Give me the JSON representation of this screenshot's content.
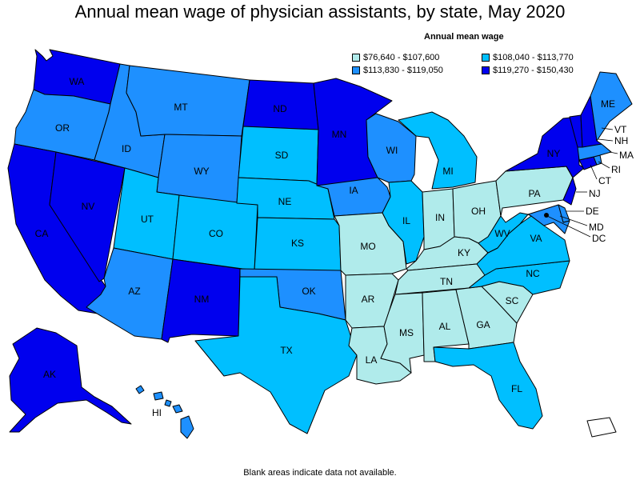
{
  "title": "Annual mean wage of physician assistants, by state, May 2020",
  "legend": {
    "title": "Annual mean wage",
    "items": [
      {
        "label": "$76,640 - $107,600",
        "color": "#b0ebeb"
      },
      {
        "label": "$108,040 - $113,770",
        "color": "#00bfff"
      },
      {
        "label": "$113,830 - $119,050",
        "color": "#1e90ff"
      },
      {
        "label": "$119,270 - $150,430",
        "color": "#0000ee"
      }
    ]
  },
  "footnote": "Blank areas indicate data not available.",
  "colors": {
    "none": "#ffffff",
    "outline": "#000000"
  },
  "states": {
    "WA": {
      "label": "WA",
      "bin": 3
    },
    "OR": {
      "label": "OR",
      "bin": 2
    },
    "CA": {
      "label": "CA",
      "bin": 3
    },
    "NV": {
      "label": "NV",
      "bin": 3
    },
    "ID": {
      "label": "ID",
      "bin": 2
    },
    "MT": {
      "label": "MT",
      "bin": 2
    },
    "WY": {
      "label": "WY",
      "bin": 2
    },
    "UT": {
      "label": "UT",
      "bin": 1
    },
    "AZ": {
      "label": "AZ",
      "bin": 2
    },
    "CO": {
      "label": "CO",
      "bin": 1
    },
    "NM": {
      "label": "NM",
      "bin": 3
    },
    "ND": {
      "label": "ND",
      "bin": 3
    },
    "SD": {
      "label": "SD",
      "bin": 1
    },
    "NE": {
      "label": "NE",
      "bin": 1
    },
    "KS": {
      "label": "KS",
      "bin": 1
    },
    "OK": {
      "label": "OK",
      "bin": 2
    },
    "TX": {
      "label": "TX",
      "bin": 1
    },
    "MN": {
      "label": "MN",
      "bin": 3
    },
    "IA": {
      "label": "IA",
      "bin": 2
    },
    "MO": {
      "label": "MO",
      "bin": 0
    },
    "AR": {
      "label": "AR",
      "bin": 0
    },
    "LA": {
      "label": "LA",
      "bin": 0
    },
    "WI": {
      "label": "WI",
      "bin": 2
    },
    "IL": {
      "label": "IL",
      "bin": 1
    },
    "MI": {
      "label": "MI",
      "bin": 1
    },
    "IN": {
      "label": "IN",
      "bin": 0
    },
    "OH": {
      "label": "OH",
      "bin": 0
    },
    "KY": {
      "label": "KY",
      "bin": 0
    },
    "TN": {
      "label": "TN",
      "bin": 0
    },
    "MS": {
      "label": "MS",
      "bin": 0
    },
    "AL": {
      "label": "AL",
      "bin": 0
    },
    "GA": {
      "label": "GA",
      "bin": 0
    },
    "FL": {
      "label": "FL",
      "bin": 1
    },
    "SC": {
      "label": "SC",
      "bin": 0
    },
    "NC": {
      "label": "NC",
      "bin": 1
    },
    "VA": {
      "label": "VA",
      "bin": 1
    },
    "WV": {
      "label": "WV",
      "bin": 1
    },
    "PA": {
      "label": "PA",
      "bin": 0
    },
    "NY": {
      "label": "NY",
      "bin": 3
    },
    "NJ": {
      "label": "NJ",
      "bin": 3
    },
    "DE": {
      "label": "DE",
      "bin": 2
    },
    "MD": {
      "label": "MD",
      "bin": 2
    },
    "DC": {
      "label": "DC",
      "bin": 3
    },
    "CT": {
      "label": "CT",
      "bin": 3
    },
    "RI": {
      "label": "RI",
      "bin": 2
    },
    "MA": {
      "label": "MA",
      "bin": 2
    },
    "VT": {
      "label": "VT",
      "bin": 3
    },
    "NH": {
      "label": "NH",
      "bin": 3
    },
    "ME": {
      "label": "ME",
      "bin": 2
    },
    "AK": {
      "label": "AK",
      "bin": 3
    },
    "HI": {
      "label": "HI",
      "bin": 2
    },
    "PR": {
      "label": "",
      "bin": -1
    }
  }
}
